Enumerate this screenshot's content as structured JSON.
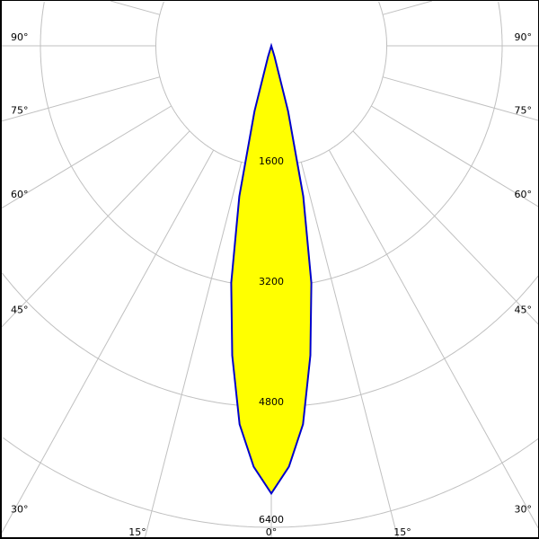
{
  "chart_data": {
    "type": "polar",
    "title": "",
    "radial_ticks": [
      1600,
      3200,
      4800,
      6400
    ],
    "radial_tick_labels": [
      "1600",
      "3200",
      "4800",
      "6400"
    ],
    "angle_labels_left": [
      "90°",
      "75°",
      "60°",
      "45°",
      "30°"
    ],
    "angle_labels_right": [
      "90°",
      "75°",
      "60°",
      "45°",
      "30°"
    ],
    "angle_labels_bottom": [
      "15°",
      "0°",
      "15°"
    ],
    "angle_label_values": [
      90,
      75,
      60,
      45,
      30
    ],
    "radial_line_step_deg": 15,
    "grid": true,
    "symmetric": true,
    "series": [
      {
        "points": [
          [
            0,
            5950
          ],
          [
            2.5,
            5600
          ],
          [
            5,
            5050
          ],
          [
            7.5,
            4150
          ],
          [
            10,
            3200
          ],
          [
            12.5,
            2050
          ],
          [
            15,
            900
          ],
          [
            17.5,
            150
          ],
          [
            19,
            0
          ]
        ],
        "fill": "#ffff00",
        "stroke": "#0000cc"
      }
    ],
    "colors": {
      "grid": "#c0c0c0",
      "fill": "#ffff00",
      "outline": "#0000cc"
    }
  }
}
